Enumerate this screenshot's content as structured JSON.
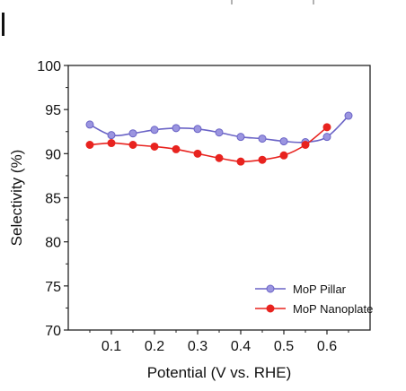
{
  "chart_data": {
    "type": "line",
    "title": "",
    "xlabel": "Potential (V vs. RHE)",
    "ylabel": "Selectivity (%)",
    "xlim": [
      0.0,
      0.7
    ],
    "ylim": [
      70,
      100
    ],
    "xticks": [
      0.1,
      0.2,
      0.3,
      0.4,
      0.5,
      0.6
    ],
    "xtick_labels": [
      "0.1",
      "0.2",
      "0.3",
      "0.4",
      "0.5",
      "0.6"
    ],
    "yticks": [
      70,
      75,
      80,
      85,
      90,
      95,
      100
    ],
    "ytick_labels": [
      "70",
      "75",
      "80",
      "85",
      "90",
      "95",
      "100"
    ],
    "grid": false,
    "legend_position": "bottom-right",
    "series": [
      {
        "name": "MoP Pillar",
        "color": "#6a63c6",
        "marker_color": "#9b95e0",
        "x": [
          0.05,
          0.1,
          0.15,
          0.2,
          0.25,
          0.3,
          0.35,
          0.4,
          0.45,
          0.5,
          0.55,
          0.6,
          0.65
        ],
        "y": [
          93.3,
          92.1,
          92.3,
          92.7,
          92.9,
          92.8,
          92.4,
          91.9,
          91.7,
          91.4,
          91.3,
          91.9,
          94.3
        ]
      },
      {
        "name": "MoP Nanoplate",
        "color": "#e8231f",
        "marker_color": "#e8231f",
        "x": [
          0.05,
          0.1,
          0.15,
          0.2,
          0.25,
          0.3,
          0.35,
          0.4,
          0.45,
          0.5,
          0.55,
          0.6
        ],
        "y": [
          91.0,
          91.2,
          91.0,
          90.8,
          90.5,
          90.0,
          89.5,
          89.1,
          89.3,
          89.8,
          91.0,
          93.0
        ]
      }
    ]
  }
}
